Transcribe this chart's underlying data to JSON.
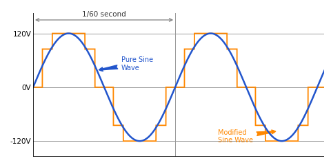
{
  "bg_color": "#ffffff",
  "sine_color": "#2255cc",
  "modified_color": "#ff8800",
  "grid_color": "#999999",
  "amplitude": 120,
  "mid_v": 85,
  "ylim": [
    -155,
    165
  ],
  "pure_sine_label": "Pure Sine\nWave",
  "modified_sine_label": "Modified\nSine Wave",
  "period_label": "1/60 second",
  "step_fracs": [
    0.0,
    0.13,
    0.27,
    0.73,
    0.87,
    1.0
  ],
  "step_vals": [
    0,
    85,
    120,
    85,
    0
  ]
}
